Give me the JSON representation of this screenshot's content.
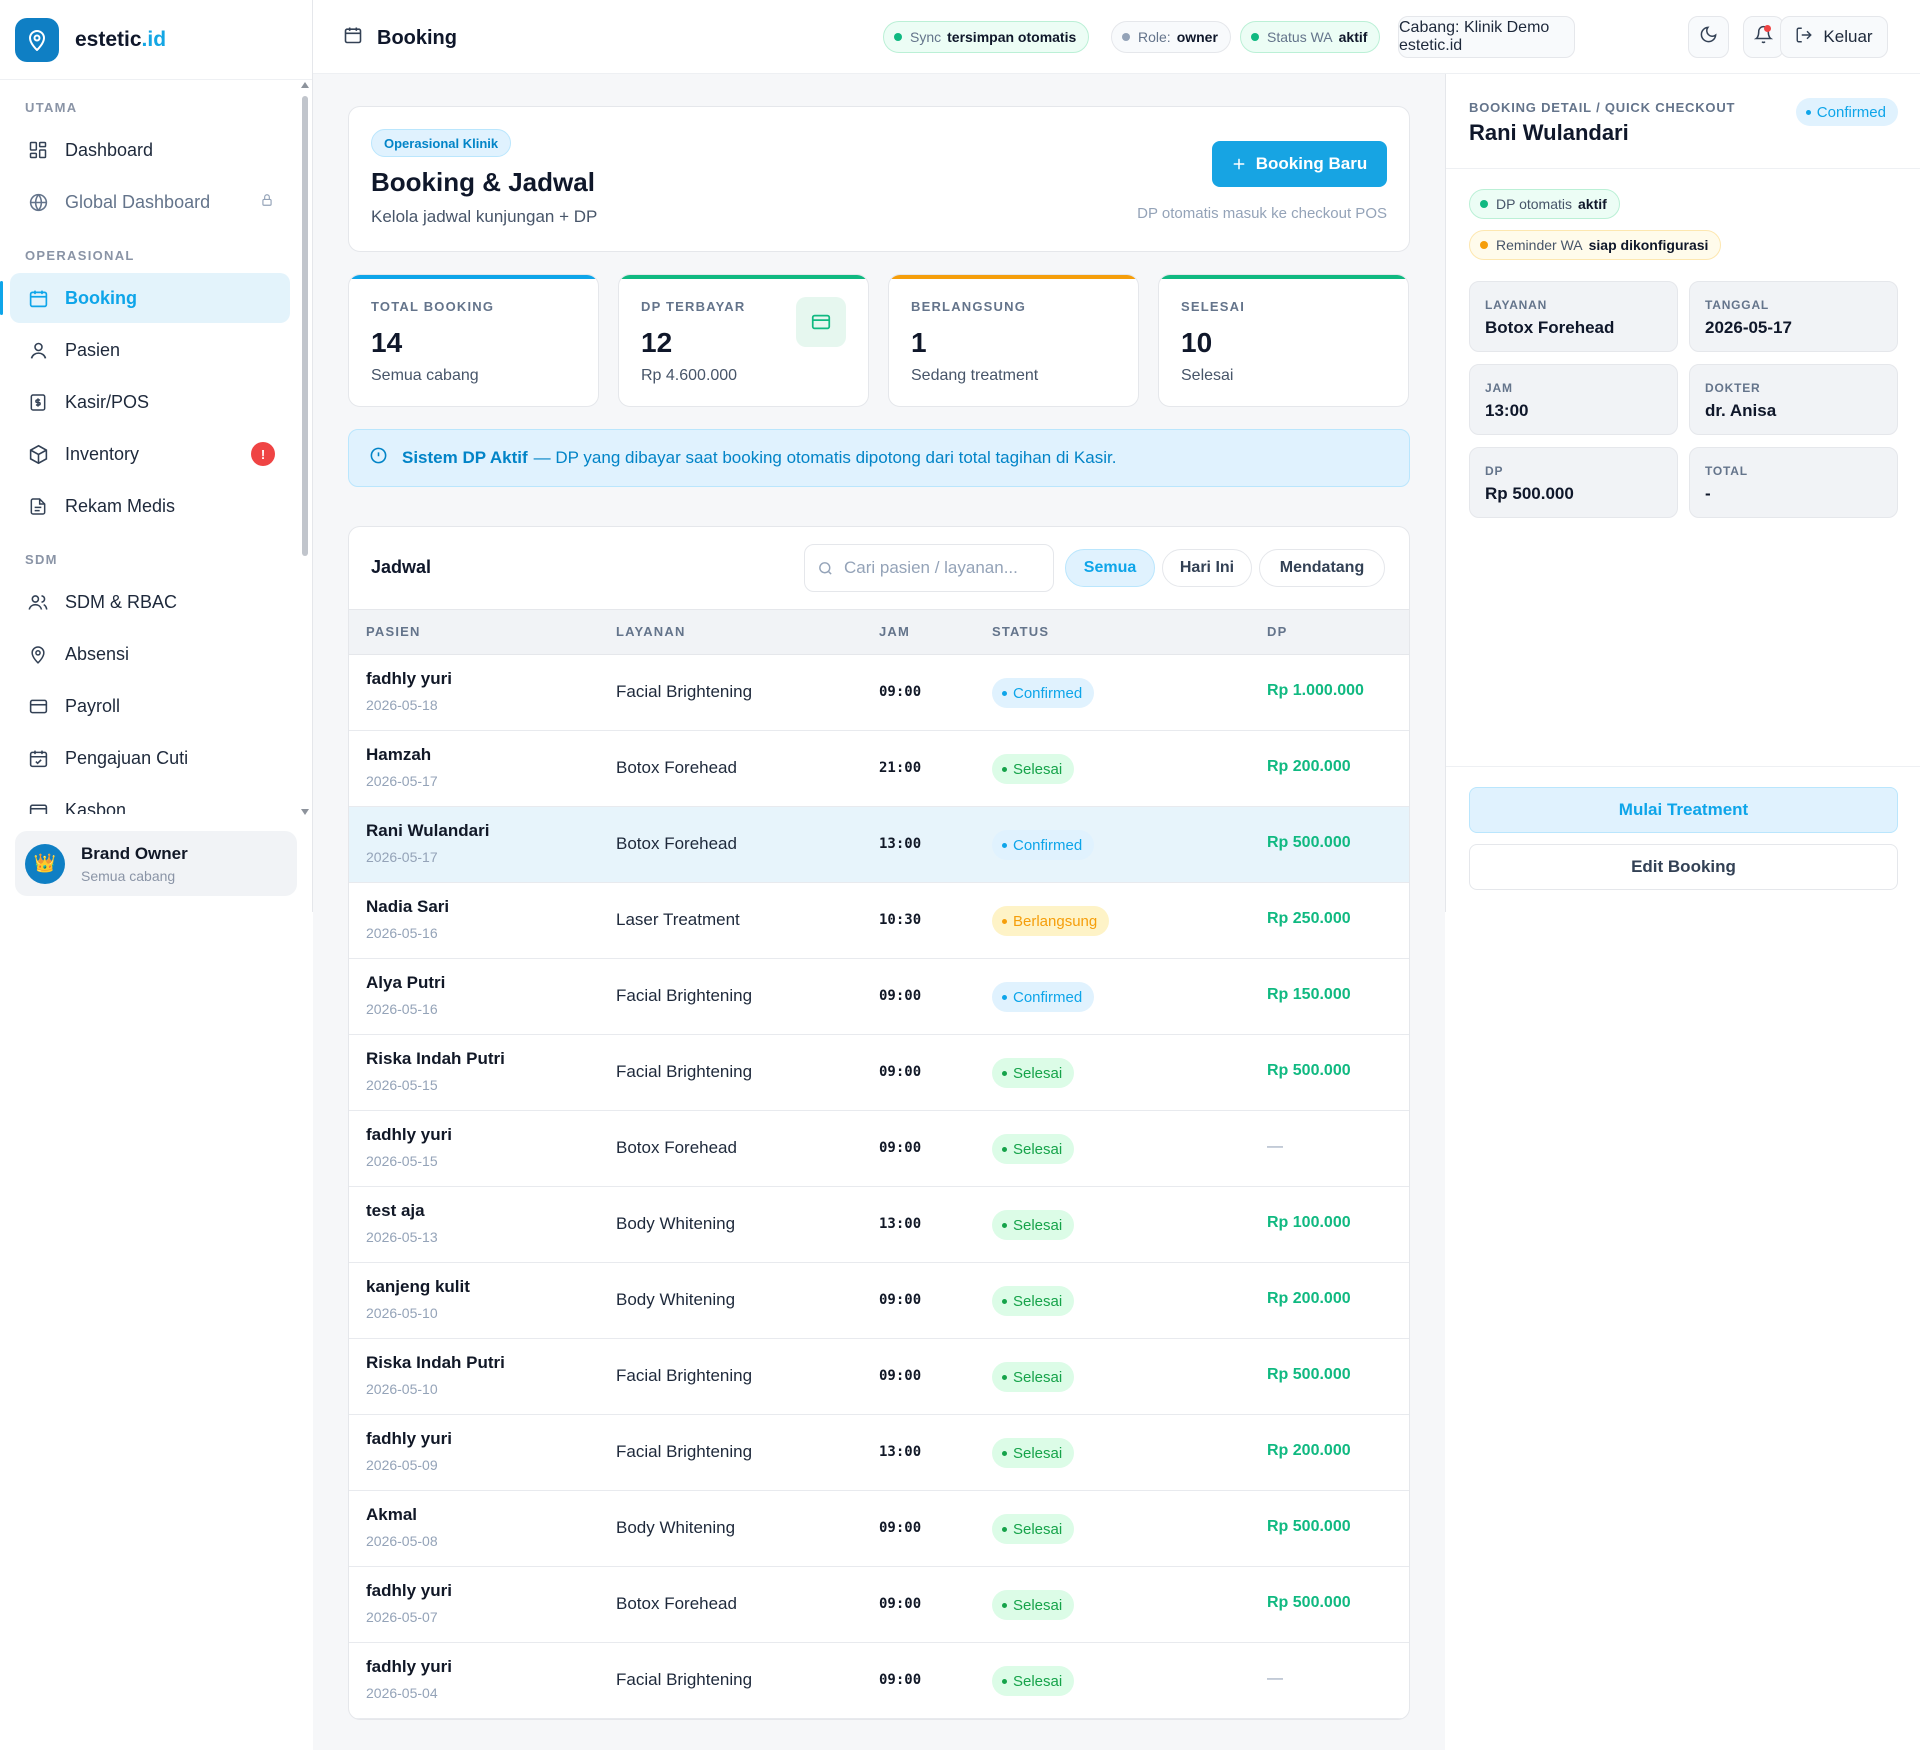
{
  "app": {
    "brand_prefix": "estetic",
    "brand_suffix": ".id",
    "logo_icon": "map-pin-icon"
  },
  "sidebar": {
    "sections": [
      {
        "title": "UTAMA",
        "items": [
          {
            "label": "Dashboard",
            "icon": "grid-icon"
          },
          {
            "label": "Global Dashboard",
            "icon": "globe-icon",
            "locked": true
          }
        ]
      },
      {
        "title": "OPERASIONAL",
        "items": [
          {
            "label": "Booking",
            "icon": "calendar-icon",
            "active": true
          },
          {
            "label": "Pasien",
            "icon": "user-icon"
          },
          {
            "label": "Kasir/POS",
            "icon": "receipt-icon"
          },
          {
            "label": "Inventory",
            "icon": "box-icon",
            "badge": "!"
          },
          {
            "label": "Rekam Medis",
            "icon": "file-icon"
          }
        ]
      },
      {
        "title": "SDM",
        "items": [
          {
            "label": "SDM & RBAC",
            "icon": "users-icon"
          },
          {
            "label": "Absensi",
            "icon": "location-icon"
          },
          {
            "label": "Payroll",
            "icon": "card-icon"
          },
          {
            "label": "Pengajuan Cuti",
            "icon": "calendar-check-icon"
          },
          {
            "label": "Kasbon",
            "icon": "wallet-icon"
          }
        ]
      }
    ],
    "user": {
      "name": "Brand Owner",
      "subtitle": "Semua cabang",
      "avatar": "👑"
    }
  },
  "header": {
    "title": "Booking",
    "pills": [
      {
        "label": "Sync",
        "value": "tersimpan otomatis",
        "dot": "#10b981"
      },
      {
        "label": "Role:",
        "value": "owner",
        "dot": "#94a3b8"
      },
      {
        "label": "Status WA",
        "value": "aktif",
        "dot": "#10b981"
      }
    ],
    "branch": "Cabang: Klinik Demo estetic.id",
    "logout_label": "Keluar"
  },
  "hero": {
    "tag": "Operasional Klinik",
    "title": "Booking & Jadwal",
    "subtitle": "Kelola jadwal kunjungan + DP",
    "button_label": "Booking Baru",
    "note": "DP otomatis masuk ke checkout POS"
  },
  "stats": [
    {
      "label": "TOTAL BOOKING",
      "value": "14",
      "sub": "Semua cabang",
      "color": "#0ea5e9"
    },
    {
      "label": "DP TERBAYAR",
      "value": "12",
      "sub": "Rp 4.600.000",
      "color": "#10b981"
    },
    {
      "label": "BERLANGSUNG",
      "value": "1",
      "sub": "Sedang treatment",
      "color": "#f59e0b"
    },
    {
      "label": "SELESAI",
      "value": "10",
      "sub": "Selesai",
      "color": "#10b981"
    }
  ],
  "alert": {
    "title": "Sistem DP Aktif",
    "text": "— DP yang dibayar saat booking otomatis dipotong dari total tagihan di Kasir."
  },
  "schedule": {
    "title": "Jadwal",
    "search_placeholder": "Cari pasien / layanan...",
    "filters": [
      "Semua",
      "Hari Ini",
      "Mendatang"
    ],
    "active_filter": 0,
    "columns": [
      "PASIEN",
      "LAYANAN",
      "JAM",
      "STATUS",
      "DP"
    ],
    "rows": [
      {
        "name": "fadhly yuri",
        "date": "2026-05-18",
        "service": "Facial Brightening",
        "time": "09:00",
        "status": "Confirmed",
        "dp": "Rp 1.000.000"
      },
      {
        "name": "Hamzah",
        "date": "2026-05-17",
        "service": "Botox Forehead",
        "time": "21:00",
        "status": "Selesai",
        "dp": "Rp 200.000"
      },
      {
        "name": "Rani Wulandari",
        "date": "2026-05-17",
        "service": "Botox Forehead",
        "time": "13:00",
        "status": "Confirmed",
        "dp": "Rp 500.000",
        "selected": true
      },
      {
        "name": "Nadia Sari",
        "date": "2026-05-16",
        "service": "Laser Treatment",
        "time": "10:30",
        "status": "Berlangsung",
        "dp": "Rp 250.000"
      },
      {
        "name": "Alya Putri",
        "date": "2026-05-16",
        "service": "Facial Brightening",
        "time": "09:00",
        "status": "Confirmed",
        "dp": "Rp 150.000"
      },
      {
        "name": "Riska Indah Putri",
        "date": "2026-05-15",
        "service": "Facial Brightening",
        "time": "09:00",
        "status": "Selesai",
        "dp": "Rp 500.000"
      },
      {
        "name": "fadhly yuri",
        "date": "2026-05-15",
        "service": "Botox Forehead",
        "time": "09:00",
        "status": "Selesai",
        "dp": "—"
      },
      {
        "name": "test aja",
        "date": "2026-05-13",
        "service": "Body Whitening",
        "time": "13:00",
        "status": "Selesai",
        "dp": "Rp 100.000"
      },
      {
        "name": "kanjeng kulit",
        "date": "2026-05-10",
        "service": "Body Whitening",
        "time": "09:00",
        "status": "Selesai",
        "dp": "Rp 200.000"
      },
      {
        "name": "Riska Indah Putri",
        "date": "2026-05-10",
        "service": "Facial Brightening",
        "time": "09:00",
        "status": "Selesai",
        "dp": "Rp 500.000"
      },
      {
        "name": "fadhly yuri",
        "date": "2026-05-09",
        "service": "Facial Brightening",
        "time": "13:00",
        "status": "Selesai",
        "dp": "Rp 200.000"
      },
      {
        "name": "Akmal",
        "date": "2026-05-08",
        "service": "Body Whitening",
        "time": "09:00",
        "status": "Selesai",
        "dp": "Rp 500.000"
      },
      {
        "name": "fadhly yuri",
        "date": "2026-05-07",
        "service": "Botox Forehead",
        "time": "09:00",
        "status": "Selesai",
        "dp": "Rp 500.000"
      },
      {
        "name": "fadhly yuri",
        "date": "2026-05-04",
        "service": "Facial Brightening",
        "time": "09:00",
        "status": "Selesai",
        "dp": "—"
      }
    ]
  },
  "detail": {
    "kicker": "BOOKING DETAIL / QUICK CHECKOUT",
    "name": "Rani Wulandari",
    "status": "Confirmed",
    "pills": [
      {
        "label": "DP otomatis",
        "value": "aktif",
        "tone": "green",
        "dot": "#10b981"
      },
      {
        "label": "Reminder WA",
        "value": "siap dikonfigurasi",
        "tone": "amber",
        "dot": "#f59e0b"
      }
    ],
    "fields": [
      {
        "label": "LAYANAN",
        "value": "Botox Forehead"
      },
      {
        "label": "TANGGAL",
        "value": "2026-05-17"
      },
      {
        "label": "JAM",
        "value": "13:00"
      },
      {
        "label": "DOKTER",
        "value": "dr. Anisa"
      },
      {
        "label": "DP",
        "value": "Rp 500.000"
      },
      {
        "label": "TOTAL",
        "value": "-"
      }
    ],
    "primary_action": "Mulai Treatment",
    "secondary_action": "Edit Booking"
  }
}
